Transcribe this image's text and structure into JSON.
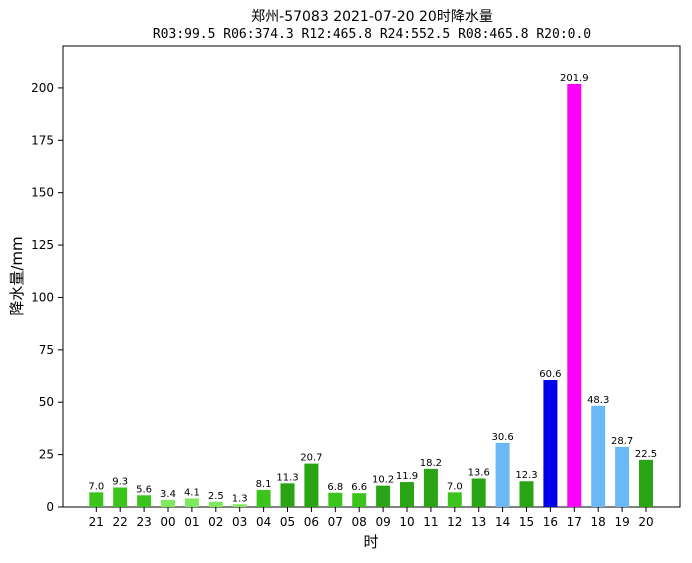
{
  "chart_data": {
    "type": "bar",
    "title": "郑州-57083  2021-07-20 20时降水量",
    "subtitle": "R03:99.5  R06:374.3  R12:465.8  R24:552.5  R08:465.8  R20:0.0",
    "xlabel": "时",
    "ylabel": "降水量/mm",
    "ylim": [
      0,
      220
    ],
    "yticks": [
      0,
      25,
      50,
      75,
      100,
      125,
      150,
      175,
      200
    ],
    "grid": false,
    "categories": [
      "21",
      "22",
      "23",
      "00",
      "01",
      "02",
      "03",
      "04",
      "05",
      "06",
      "07",
      "08",
      "09",
      "10",
      "11",
      "12",
      "13",
      "14",
      "15",
      "16",
      "17",
      "18",
      "19",
      "20"
    ],
    "values": [
      7.0,
      9.3,
      5.6,
      3.4,
      4.1,
      2.5,
      1.3,
      8.1,
      11.3,
      20.7,
      6.8,
      6.6,
      10.2,
      11.9,
      18.2,
      7.0,
      13.6,
      30.6,
      12.3,
      60.6,
      201.9,
      48.3,
      28.7,
      22.5
    ],
    "value_labels": [
      "7.0",
      "9.3",
      "5.6",
      "3.4",
      "4.1",
      "2.5",
      "1.3",
      "8.1",
      "11.3",
      "20.7",
      "6.8",
      "6.6",
      "10.2",
      "11.9",
      "18.2",
      "7.0",
      "13.6",
      "30.6",
      "12.3",
      "60.6",
      "201.9",
      "48.3",
      "28.7",
      "22.5"
    ],
    "colors": [
      "#3cc41c",
      "#3cc41c",
      "#3cc41c",
      "#7ee85e",
      "#7ee85e",
      "#7ee85e",
      "#7ee85e",
      "#3cc41c",
      "#2aa414",
      "#2aa414",
      "#3cc41c",
      "#3cc41c",
      "#2aa414",
      "#2aa414",
      "#2aa414",
      "#3cc41c",
      "#2aa414",
      "#6ab8f5",
      "#2aa414",
      "#0000e8",
      "#ff00ff",
      "#6ab8f5",
      "#6ab8f5",
      "#2aa414"
    ]
  }
}
